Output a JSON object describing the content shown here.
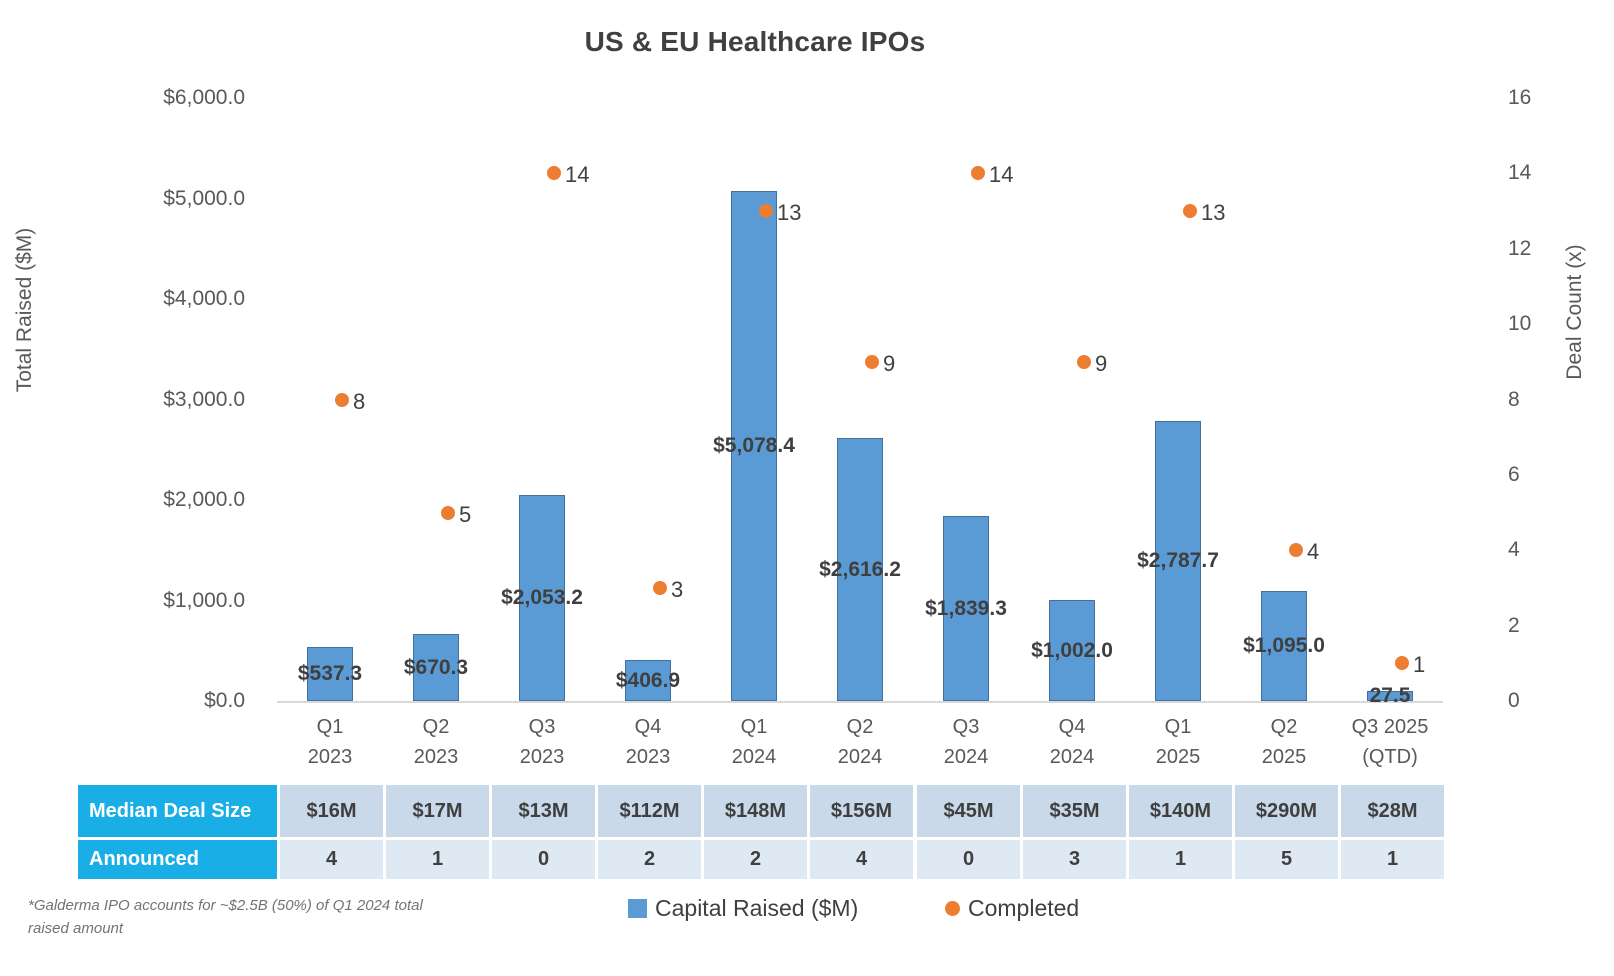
{
  "chart_data": {
    "type": "combo_bar_scatter",
    "title": "US & EU Healthcare IPOs",
    "categories": [
      "Q1\n2023",
      "Q2\n2023",
      "Q3\n2023",
      "Q4\n2023",
      "Q1\n2024",
      "Q2\n2024",
      "Q3\n2024",
      "Q4\n2024",
      "Q1\n2025",
      "Q2\n2025",
      "Q3 2025\n(QTD)"
    ],
    "series": [
      {
        "name": "Capital Raised ($M)",
        "type": "bar",
        "axis": "left",
        "color": "#5B9BD5",
        "border_color": "#41719C",
        "values": [
          537.3,
          670.3,
          2053.2,
          406.9,
          5078.4,
          2616.2,
          1839.3,
          1002.0,
          2787.7,
          1095.0,
          27.5
        ],
        "value_labels": [
          "$537.3",
          "$670.3",
          "$2,053.2",
          "$406.9",
          "$5,078.4",
          "$2,616.2",
          "$1,839.3",
          "$1,002.0",
          "$2,787.7",
          "$1,095.0",
          "27.5"
        ]
      },
      {
        "name": "Completed",
        "type": "scatter",
        "axis": "right",
        "color": "#ED7D31",
        "values": [
          8,
          5,
          14,
          3,
          13,
          9,
          14,
          9,
          13,
          4,
          1
        ],
        "value_labels": [
          "8",
          "5",
          "14",
          "3",
          "13",
          "9",
          "14",
          "9",
          "13",
          "4",
          "1"
        ]
      }
    ],
    "left_axis": {
      "title": "Total Raised ($M)",
      "min": 0,
      "max": 6000,
      "tick_values": [
        0,
        1000,
        2000,
        3000,
        4000,
        5000,
        6000
      ],
      "tick_labels": [
        "$0.0",
        "$1,000.0",
        "$2,000.0",
        "$3,000.0",
        "$4,000.0",
        "$5,000.0",
        "$6,000.0"
      ]
    },
    "right_axis": {
      "title": "Deal Count (x)",
      "min": 0,
      "max": 16,
      "tick_values": [
        0,
        2,
        4,
        6,
        8,
        10,
        12,
        14,
        16
      ],
      "tick_labels": [
        "0",
        "2",
        "4",
        "6",
        "8",
        "10",
        "12",
        "14",
        "16"
      ]
    },
    "legend": [
      {
        "label": "Capital Raised ($M)",
        "marker": "square",
        "color": "#5B9BD5"
      },
      {
        "label": "Completed",
        "marker": "circle",
        "color": "#ED7D31"
      }
    ],
    "grid": false,
    "legend_position": "bottom"
  },
  "table": {
    "rows": [
      {
        "label": "Median Deal Size",
        "label_bg": "#19AFE6",
        "cell_bg": "#C9D9EA",
        "values": [
          "$16M",
          "$17M",
          "$13M",
          "$112M",
          "$148M",
          "$156M",
          "$45M",
          "$35M",
          "$140M",
          "$290M",
          "$28M"
        ]
      },
      {
        "label": "Announced",
        "label_bg": "#19AFE6",
        "cell_bg": "#DFE9F4",
        "values": [
          "4",
          "1",
          "0",
          "2",
          "2",
          "4",
          "0",
          "3",
          "1",
          "5",
          "1"
        ]
      }
    ]
  },
  "footnote": {
    "line1": "*Galderma IPO accounts for ~$2.5B (50%) of Q1 2024 total",
    "line2": "raised amount"
  }
}
